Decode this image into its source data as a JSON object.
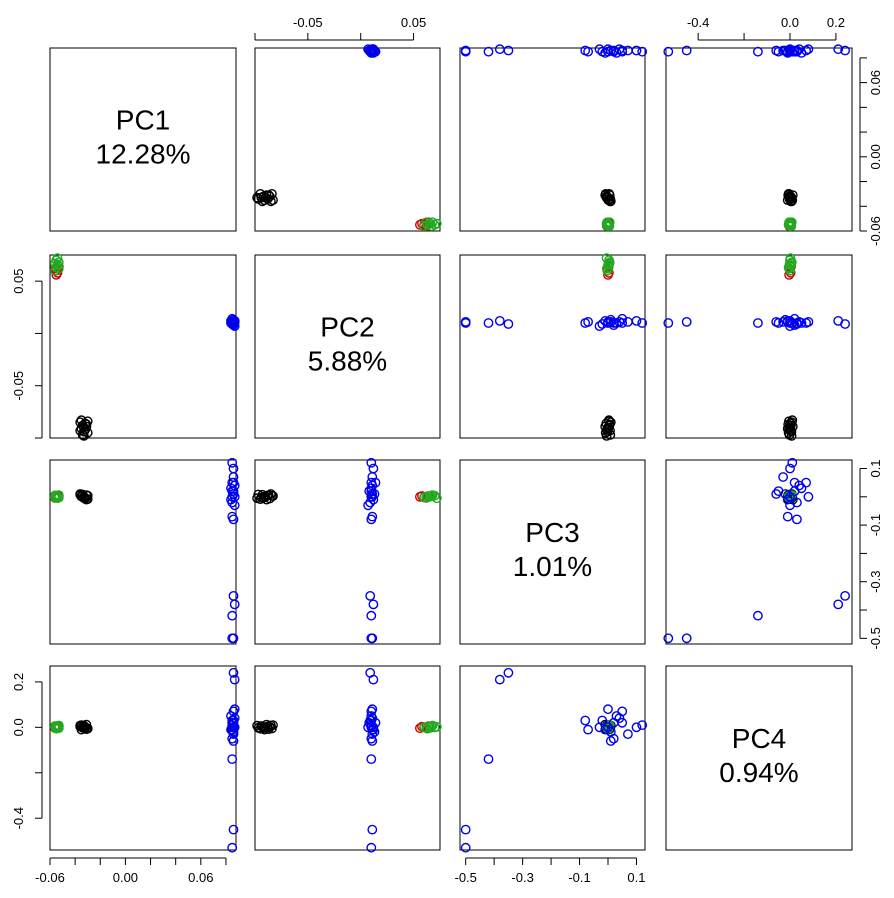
{
  "chart_data": {
    "type": "scatter",
    "kind": "pairs-matrix",
    "variables": [
      {
        "name": "PC1",
        "label": "12.28%"
      },
      {
        "name": "PC2",
        "label": "5.88%"
      },
      {
        "name": "PC3",
        "label": "1.01%"
      },
      {
        "name": "PC4",
        "label": "0.94%"
      }
    ],
    "ranges": {
      "PC1": [
        -0.06,
        0.088
      ],
      "PC2": [
        -0.1,
        0.075
      ],
      "PC3": [
        -0.52,
        0.13
      ],
      "PC4": [
        -0.54,
        0.27
      ]
    },
    "axes": {
      "top": [
        {
          "var": "PC2",
          "ticks": [
            -0.1,
            -0.05,
            0,
            0.05
          ],
          "labels": [
            "",
            "-0.05",
            "",
            "0.05"
          ]
        },
        {
          "var": "PC4",
          "ticks": [
            -0.4,
            -0.2,
            0.0,
            0.2
          ],
          "labels": [
            "-0.4",
            "",
            "0.0",
            "0.2"
          ]
        }
      ],
      "bottom": [
        {
          "var": "PC1",
          "ticks": [
            -0.06,
            -0.04,
            -0.02,
            0.0,
            0.02,
            0.04,
            0.06,
            0.08
          ],
          "labels": [
            "-0.06",
            "",
            "",
            "0.00",
            "",
            "",
            "0.06",
            ""
          ]
        },
        {
          "var": "PC3",
          "ticks": [
            -0.5,
            -0.4,
            -0.3,
            -0.2,
            -0.1,
            0.0,
            0.1
          ],
          "labels": [
            "-0.5",
            "",
            "-0.3",
            "",
            "-0.1",
            "",
            "0.1"
          ]
        }
      ],
      "left": [
        {
          "var": "PC2",
          "ticks": [
            -0.1,
            -0.05,
            0,
            0.05
          ],
          "labels": [
            "",
            "-0.05",
            "",
            "0.05"
          ]
        },
        {
          "var": "PC4",
          "ticks": [
            -0.4,
            -0.2,
            0.0,
            0.2
          ],
          "labels": [
            "-0.4",
            "",
            "0.0",
            "0.2"
          ]
        }
      ],
      "right": [
        {
          "var": "PC1",
          "ticks": [
            -0.06,
            -0.04,
            -0.02,
            0.0,
            0.02,
            0.04,
            0.06,
            0.08
          ],
          "labels": [
            "-0.06",
            "",
            "",
            "0.00",
            "",
            "",
            "0.06",
            ""
          ]
        },
        {
          "var": "PC3",
          "ticks": [
            -0.5,
            -0.4,
            -0.3,
            -0.2,
            -0.1,
            0.0,
            0.1
          ],
          "labels": [
            "-0.5",
            "",
            "-0.3",
            "",
            "-0.1",
            "",
            "0.1"
          ]
        }
      ]
    },
    "groups": [
      {
        "color": "#000000",
        "points": [
          [
            -0.033,
            -0.09,
            0.0,
            0.0
          ],
          [
            -0.034,
            -0.088,
            0.005,
            0.004
          ],
          [
            -0.032,
            -0.092,
            -0.004,
            -0.004
          ],
          [
            -0.036,
            -0.085,
            0.01,
            0.008
          ],
          [
            -0.03,
            -0.095,
            -0.008,
            -0.006
          ],
          [
            -0.035,
            -0.083,
            0.003,
            0.01
          ],
          [
            -0.031,
            -0.087,
            0.006,
            -0.008
          ],
          [
            -0.033,
            -0.094,
            -0.002,
            0.006
          ],
          [
            -0.034,
            -0.097,
            0.008,
            -0.002
          ],
          [
            -0.032,
            -0.086,
            -0.006,
            0.002
          ],
          [
            -0.035,
            -0.091,
            0.001,
            -0.01
          ],
          [
            -0.031,
            -0.089,
            -0.01,
            0.012
          ],
          [
            -0.036,
            -0.093,
            0.007,
            0.003
          ],
          [
            -0.03,
            -0.084,
            0.004,
            -0.005
          ],
          [
            -0.033,
            -0.098,
            -0.005,
            0.007
          ]
        ]
      },
      {
        "color": "#cc0000",
        "points": [
          [
            -0.055,
            0.06,
            -0.002,
            0.0
          ],
          [
            -0.054,
            0.058,
            0.003,
            0.003
          ],
          [
            -0.056,
            0.062,
            -0.004,
            -0.003
          ],
          [
            -0.053,
            0.064,
            0.002,
            0.005
          ],
          [
            -0.055,
            0.056,
            0.0,
            -0.004
          ]
        ]
      },
      {
        "color": "#22aa22",
        "points": [
          [
            -0.054,
            0.065,
            0.0,
            0.004
          ],
          [
            -0.055,
            0.07,
            0.004,
            0.0
          ],
          [
            -0.053,
            0.062,
            -0.003,
            -0.004
          ],
          [
            -0.056,
            0.067,
            0.005,
            0.006
          ],
          [
            -0.054,
            0.072,
            -0.005,
            0.002
          ],
          [
            -0.055,
            0.063,
            0.002,
            -0.006
          ],
          [
            -0.053,
            0.068,
            0.006,
            0.008
          ],
          [
            -0.056,
            0.06,
            -0.002,
            0.001
          ],
          [
            -0.054,
            0.066,
            0.001,
            -0.002
          ]
        ]
      },
      {
        "color": "#0000ee",
        "points": [
          [
            0.085,
            0.01,
            0.0,
            0.0
          ],
          [
            0.086,
            0.008,
            0.02,
            0.02
          ],
          [
            0.084,
            0.012,
            -0.01,
            -0.01
          ],
          [
            0.087,
            0.011,
            0.04,
            0.04
          ],
          [
            0.085,
            0.009,
            -0.02,
            0.03
          ],
          [
            0.086,
            0.013,
            0.01,
            -0.02
          ],
          [
            0.084,
            0.01,
            0.03,
            0.05
          ],
          [
            0.087,
            0.007,
            -0.03,
            0.0
          ],
          [
            0.085,
            0.014,
            0.05,
            0.02
          ],
          [
            0.086,
            0.011,
            0.07,
            -0.03
          ],
          [
            0.086,
            0.012,
            0.1,
            0.0
          ],
          [
            0.085,
            0.01,
            0.12,
            0.01
          ],
          [
            0.086,
            0.01,
            -0.08,
            0.03
          ],
          [
            0.085,
            0.011,
            -0.07,
            -0.01
          ],
          [
            0.086,
            0.009,
            -0.35,
            0.24
          ],
          [
            0.087,
            0.012,
            -0.38,
            0.21
          ],
          [
            0.085,
            0.01,
            -0.42,
            -0.14
          ],
          [
            0.086,
            0.011,
            -0.5,
            -0.45
          ],
          [
            0.085,
            0.01,
            -0.5,
            -0.53
          ],
          [
            0.086,
            0.01,
            0.05,
            0.07
          ],
          [
            0.085,
            0.01,
            0.02,
            -0.05
          ],
          [
            0.087,
            0.011,
            0.0,
            0.08
          ],
          [
            0.086,
            0.011,
            0.01,
            -0.06
          ]
        ]
      }
    ]
  }
}
